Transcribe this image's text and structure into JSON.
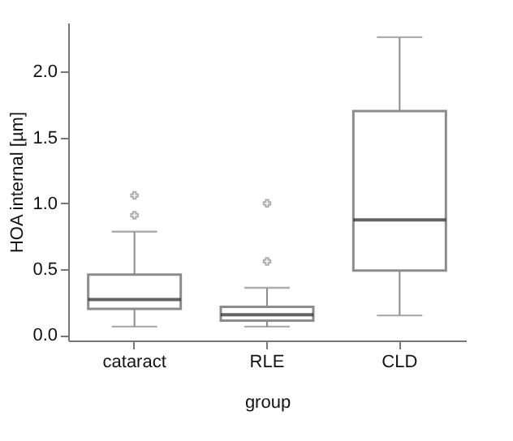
{
  "chart_data": {
    "type": "box",
    "xlabel": "group",
    "ylabel": "HOA internal [µm]",
    "categories": [
      "cataract",
      "RLE",
      "CLD"
    ],
    "ylim": [
      -0.04,
      2.37
    ],
    "yticks": [
      {
        "value": 0,
        "label": "0.0"
      },
      0.5,
      {
        "value": 1,
        "label": "1.0"
      },
      1.5,
      {
        "value": 2,
        "label": "2.0"
      }
    ],
    "grid": false,
    "marker": "cross",
    "boxes": [
      {
        "low": 0.065,
        "q1": 0.2,
        "median": 0.27,
        "q3": 0.46,
        "high": 0.785,
        "outliers": [
          0.91,
          1.06
        ]
      },
      {
        "low": 0.065,
        "q1": 0.11,
        "median": 0.155,
        "q3": 0.215,
        "high": 0.36,
        "outliers": [
          0.56,
          1.0
        ]
      },
      {
        "low": 0.15,
        "q1": 0.49,
        "median": 0.875,
        "q3": 1.7,
        "high": 2.26
      }
    ]
  }
}
